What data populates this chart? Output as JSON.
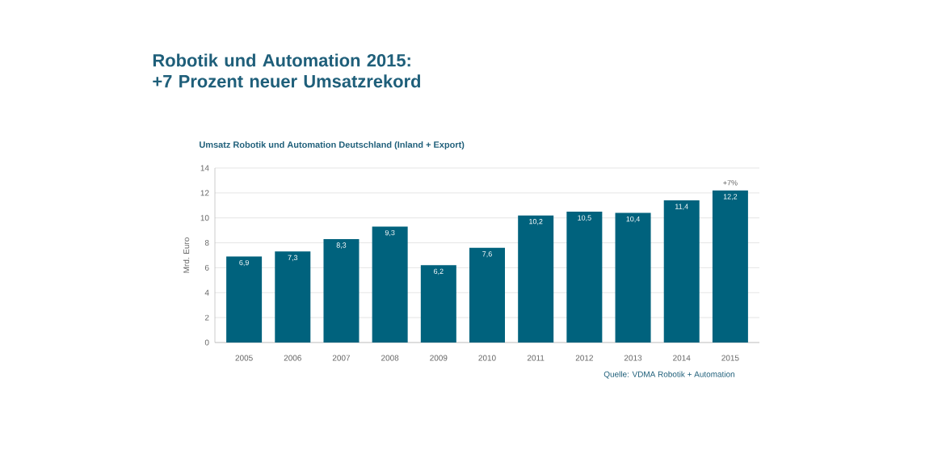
{
  "chart_data": {
    "type": "bar",
    "title": "Robotik und Automation 2015:\n+7 Prozent neuer Umsatzrekord",
    "subtitle": "Umsatz Robotik und Automation Deutschland (Inland + Export)",
    "ylabel": "Mrd. Euro",
    "categories": [
      "2005",
      "2006",
      "2007",
      "2008",
      "2009",
      "2010",
      "2011",
      "2012",
      "2013",
      "2014",
      "2015"
    ],
    "values": [
      6.9,
      7.3,
      8.3,
      9.3,
      6.2,
      7.6,
      10.2,
      10.5,
      10.4,
      11.4,
      12.2
    ],
    "value_labels": [
      "6,9",
      "7,3",
      "8,3",
      "9,3",
      "6,2",
      "7,6",
      "10,2",
      "10,5",
      "10,4",
      "11,4",
      "12,2"
    ],
    "color": "#00627d",
    "ylim": [
      0,
      14
    ],
    "yticks": [
      0,
      2,
      4,
      6,
      8,
      10,
      12,
      14
    ],
    "grid": "y",
    "annotations": [
      {
        "text": "+7%",
        "x": "2015",
        "y": 12.2
      },
      "Quelle: VDMA Robotik + Automation"
    ]
  }
}
